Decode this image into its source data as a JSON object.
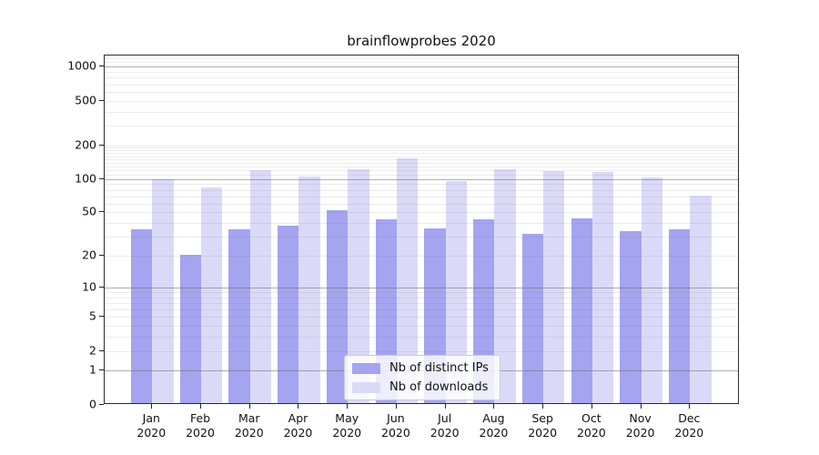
{
  "title": "brainflowprobes 2020",
  "year": "2020",
  "chart_data": {
    "type": "bar",
    "title": "brainflowprobes 2020",
    "categories": [
      "Jan",
      "Feb",
      "Mar",
      "Apr",
      "May",
      "Jun",
      "Jul",
      "Aug",
      "Sep",
      "Oct",
      "Nov",
      "Dec"
    ],
    "category_year": "2020",
    "series": [
      {
        "name": "Nb of distinct IPs",
        "color": "#a4a4f0",
        "values": [
          34,
          20,
          34,
          37,
          51,
          42,
          35,
          42,
          31,
          43,
          33,
          34
        ]
      },
      {
        "name": "Nb of downloads",
        "color": "#dadaf8",
        "values": [
          97,
          81,
          117,
          102,
          119,
          149,
          93,
          118,
          115,
          112,
          101,
          69
        ]
      }
    ],
    "yscale": "log1p",
    "ytick_values": [
      0,
      1,
      2,
      5,
      10,
      20,
      50,
      100,
      200,
      500,
      1000
    ],
    "ytick_labels": [
      "0",
      "1",
      "2",
      "5",
      "10",
      "20",
      "50",
      "100",
      "200",
      "500",
      "1000"
    ],
    "major_grid_values": [
      1,
      10,
      100,
      1000
    ],
    "minor_grid_values": [
      2,
      3,
      4,
      5,
      6,
      7,
      8,
      9,
      20,
      30,
      40,
      50,
      60,
      70,
      80,
      90,
      110,
      120,
      130,
      140,
      150,
      160,
      170,
      180,
      190,
      200,
      300,
      400,
      500,
      600,
      700,
      800,
      900,
      1100,
      1200
    ],
    "grid": "horizontal",
    "legend_position": "lower-center"
  },
  "legend": {
    "items": [
      {
        "label": "Nb of distinct IPs",
        "color": "#a4a4f0"
      },
      {
        "label": "Nb of downloads",
        "color": "#dadaf8"
      }
    ]
  }
}
